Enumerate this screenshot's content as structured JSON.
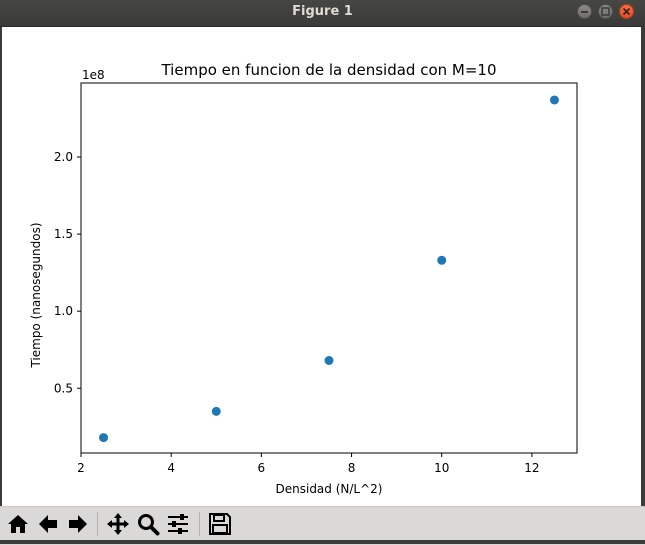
{
  "window": {
    "title": "Figure 1",
    "controls": [
      "minimize-icon",
      "maximize-icon",
      "close-icon"
    ]
  },
  "toolbar": {
    "buttons": [
      {
        "name": "home-icon",
        "tooltip": "Reset original view"
      },
      {
        "name": "back-arrow-icon",
        "tooltip": "Back to previous view"
      },
      {
        "name": "forward-arrow-icon",
        "tooltip": "Forward to next view"
      },
      {
        "name": "pan-move-icon",
        "tooltip": "Pan axes"
      },
      {
        "name": "zoom-magnifier-icon",
        "tooltip": "Zoom to rectangle"
      },
      {
        "name": "configure-subplots-icon",
        "tooltip": "Configure subplots"
      },
      {
        "name": "save-floppy-icon",
        "tooltip": "Save the figure"
      }
    ]
  },
  "colors": {
    "marker": "#1f77b4",
    "titlebar": "#3b3b39",
    "toolbar": "#dad9d7"
  },
  "chart_data": {
    "type": "scatter",
    "title": "Tiempo en funcion de la densidad con M=10",
    "xlabel": "Densidad (N/L^2)",
    "ylabel": "Tiempo (nanosegundos)",
    "offset_label": "1e8",
    "x": [
      2.5,
      5.0,
      7.5,
      10.0,
      12.5
    ],
    "y": [
      18000000,
      35000000,
      68000000,
      133000000,
      237000000
    ],
    "xlim": [
      2.0,
      13.0
    ],
    "ylim": [
      8000000,
      248000000
    ],
    "xticks": [
      2,
      4,
      6,
      8,
      10,
      12
    ],
    "xtick_labels": [
      "2",
      "4",
      "6",
      "8",
      "10",
      "12"
    ],
    "yticks": [
      50000000,
      100000000,
      150000000,
      200000000
    ],
    "ytick_labels": [
      "0.5",
      "1.0",
      "1.5",
      "2.0"
    ],
    "grid": false,
    "legend": "none"
  }
}
